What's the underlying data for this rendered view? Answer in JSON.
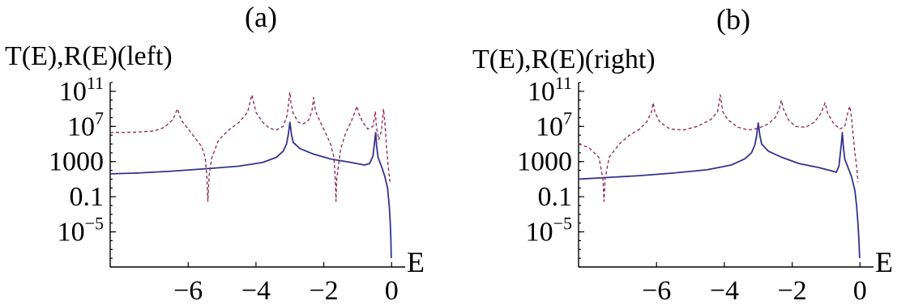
{
  "chart_data": [
    {
      "type": "line",
      "panel_label": "(a)",
      "ylabel": "T(E),R(E)(left)",
      "xlabel": "E",
      "yscale": "log",
      "xlim": [
        -8.3,
        0.4
      ],
      "ylim": [
        1e-09,
        1000000000000.0
      ],
      "x_ticks": [
        {
          "value": -6,
          "label": "−6"
        },
        {
          "value": -4,
          "label": "−4"
        },
        {
          "value": -2,
          "label": "−2"
        },
        {
          "value": 0,
          "label": "0"
        }
      ],
      "y_ticks": [
        {
          "value": 100000000000.0,
          "base": "10",
          "exp": "11"
        },
        {
          "value": 10000000.0,
          "base": "10",
          "exp": "7"
        },
        {
          "value": 1000,
          "base": "1000",
          "exp": ""
        },
        {
          "value": 0.1,
          "base": "0.1",
          "exp": ""
        },
        {
          "value": 1e-05,
          "base": "10",
          "exp": "−5"
        }
      ],
      "series": [
        {
          "style": "solid",
          "color": "#33338f",
          "points": [
            [
              -8.3,
              40
            ],
            [
              -7.5,
              50
            ],
            [
              -6.5,
              80
            ],
            [
              -5.5,
              150
            ],
            [
              -4.5,
              300
            ],
            [
              -3.8,
              800
            ],
            [
              -3.4,
              3000
            ],
            [
              -3.2,
              15000
            ],
            [
              -3.1,
              100000
            ],
            [
              -3.05,
              1000000
            ],
            [
              -3.0,
              30000000
            ],
            [
              -2.95,
              1000000
            ],
            [
              -2.9,
              150000
            ],
            [
              -2.7,
              30000
            ],
            [
              -2.3,
              7000
            ],
            [
              -1.8,
              2000
            ],
            [
              -1.2,
              800
            ],
            [
              -0.8,
              400
            ],
            [
              -0.65,
              600
            ],
            [
              -0.55,
              4000
            ],
            [
              -0.5,
              200000
            ],
            [
              -0.47,
              2000000
            ],
            [
              -0.44,
              50000
            ],
            [
              -0.4,
              3000
            ],
            [
              -0.3,
              300
            ],
            [
              -0.2,
              20
            ],
            [
              -0.12,
              1
            ],
            [
              -0.07,
              0.01
            ],
            [
              -0.04,
              0.0001
            ],
            [
              -0.02,
              1e-06
            ],
            [
              -0.01,
              1e-08
            ]
          ]
        },
        {
          "style": "dashed",
          "color": "#8a2050",
          "points": [
            [
              -8.3,
              2000000
            ],
            [
              -7.6,
              2200000
            ],
            [
              -7.0,
              3000000
            ],
            [
              -6.7,
              8000000
            ],
            [
              -6.45,
              60000000
            ],
            [
              -6.32,
              1000000000
            ],
            [
              -6.2,
              50000000
            ],
            [
              -6.0,
              5000000
            ],
            [
              -5.8,
              500000
            ],
            [
              -5.6,
              50000
            ],
            [
              -5.5,
              3000
            ],
            [
              -5.45,
              30
            ],
            [
              -5.42,
              0.03
            ],
            [
              -5.38,
              30
            ],
            [
              -5.3,
              3000
            ],
            [
              -5.1,
              300000
            ],
            [
              -4.8,
              4000000
            ],
            [
              -4.5,
              30000000
            ],
            [
              -4.25,
              400000000
            ],
            [
              -4.12,
              40000000000
            ],
            [
              -4.0,
              400000000
            ],
            [
              -3.8,
              30000000
            ],
            [
              -3.6,
              6000000
            ],
            [
              -3.4,
              4000000
            ],
            [
              -3.2,
              10000000
            ],
            [
              -3.08,
              200000000
            ],
            [
              -3.03,
              10000000000
            ],
            [
              -3.0,
              80000000000
            ],
            [
              -2.97,
              5000000000
            ],
            [
              -2.9,
              300000000
            ],
            [
              -2.75,
              30000000
            ],
            [
              -2.6,
              20000000
            ],
            [
              -2.45,
              50000000
            ],
            [
              -2.35,
              600000000
            ],
            [
              -2.3,
              20000000000
            ],
            [
              -2.25,
              600000000
            ],
            [
              -2.1,
              30000000
            ],
            [
              -1.95,
              2000000
            ],
            [
              -1.8,
              100000
            ],
            [
              -1.7,
              3000
            ],
            [
              -1.66,
              10
            ],
            [
              -1.64,
              0.03
            ],
            [
              -1.62,
              10
            ],
            [
              -1.5,
              30000
            ],
            [
              -1.35,
              2000000
            ],
            [
              -1.2,
              30000000
            ],
            [
              -1.1,
              300000000
            ],
            [
              -1.02,
              2000000000
            ],
            [
              -0.97,
              300000000
            ],
            [
              -0.85,
              30000000
            ],
            [
              -0.7,
              5000000
            ],
            [
              -0.55,
              10000000
            ],
            [
              -0.48,
              500000000
            ],
            [
              -0.45,
              10000000
            ],
            [
              -0.38,
              300000
            ],
            [
              -0.3,
              3000000
            ],
            [
              -0.24,
              1000000000
            ],
            [
              -0.2,
              30000000
            ],
            [
              -0.15,
              50000
            ],
            [
              -0.1,
              300
            ],
            [
              -0.05,
              5
            ]
          ]
        }
      ]
    },
    {
      "type": "line",
      "panel_label": "(b)",
      "ylabel": "T(E),R(E)(right)",
      "xlabel": "E",
      "yscale": "log",
      "xlim": [
        -8.3,
        0.4
      ],
      "ylim": [
        1e-09,
        1000000000000.0
      ],
      "x_ticks": [
        {
          "value": -6,
          "label": "−6"
        },
        {
          "value": -4,
          "label": "−4"
        },
        {
          "value": -2,
          "label": "−2"
        },
        {
          "value": 0,
          "label": "0"
        }
      ],
      "y_ticks": [
        {
          "value": 100000000000.0,
          "base": "10",
          "exp": "11"
        },
        {
          "value": 10000000.0,
          "base": "10",
          "exp": "7"
        },
        {
          "value": 1000,
          "base": "1000",
          "exp": ""
        },
        {
          "value": 0.1,
          "base": "0.1",
          "exp": ""
        },
        {
          "value": 1e-05,
          "base": "10",
          "exp": "−5"
        }
      ],
      "series": [
        {
          "style": "solid",
          "color": "#33338f",
          "points": [
            [
              -8.3,
              10
            ],
            [
              -7.5,
              15
            ],
            [
              -6.5,
              25
            ],
            [
              -5.5,
              50
            ],
            [
              -4.5,
              120
            ],
            [
              -3.8,
              400
            ],
            [
              -3.4,
              2000
            ],
            [
              -3.2,
              10000
            ],
            [
              -3.1,
              80000
            ],
            [
              -3.05,
              800000
            ],
            [
              -3.0,
              25000000
            ],
            [
              -2.95,
              800000
            ],
            [
              -2.9,
              100000
            ],
            [
              -2.7,
              15000
            ],
            [
              -2.3,
              3000
            ],
            [
              -1.8,
              600
            ],
            [
              -1.2,
              200
            ],
            [
              -0.8,
              80
            ],
            [
              -0.7,
              60
            ],
            [
              -0.62,
              300
            ],
            [
              -0.55,
              100000
            ],
            [
              -0.52,
              2000000
            ],
            [
              -0.49,
              50000
            ],
            [
              -0.45,
              2000
            ],
            [
              -0.35,
              200
            ],
            [
              -0.25,
              20
            ],
            [
              -0.15,
              0.5
            ],
            [
              -0.1,
              0.01
            ],
            [
              -0.06,
              0.0001
            ],
            [
              -0.03,
              1e-06
            ],
            [
              -0.01,
              1e-08
            ]
          ]
        },
        {
          "style": "dashed",
          "color": "#8a2050",
          "points": [
            [
              -8.3,
              100000
            ],
            [
              -8.0,
              40000
            ],
            [
              -7.7,
              3000
            ],
            [
              -7.58,
              10
            ],
            [
              -7.55,
              0.03
            ],
            [
              -7.52,
              10
            ],
            [
              -7.4,
              3000
            ],
            [
              -7.1,
              100000
            ],
            [
              -6.8,
              1000000
            ],
            [
              -6.5,
              5000000
            ],
            [
              -6.3,
              30000000
            ],
            [
              -6.15,
              400000000
            ],
            [
              -6.1,
              5000000000
            ],
            [
              -6.05,
              400000000
            ],
            [
              -5.9,
              30000000
            ],
            [
              -5.6,
              5000000
            ],
            [
              -5.2,
              4000000
            ],
            [
              -4.8,
              10000000
            ],
            [
              -4.4,
              60000000
            ],
            [
              -4.2,
              500000000
            ],
            [
              -4.12,
              40000000000
            ],
            [
              -4.05,
              500000000
            ],
            [
              -3.9,
              60000000
            ],
            [
              -3.6,
              8000000
            ],
            [
              -3.3,
              4000000
            ],
            [
              -3.0,
              6000000
            ],
            [
              -2.7,
              20000000
            ],
            [
              -2.5,
              100000000
            ],
            [
              -2.38,
              1000000000
            ],
            [
              -2.32,
              10000000000
            ],
            [
              -2.26,
              1000000000
            ],
            [
              -2.1,
              50000000
            ],
            [
              -1.9,
              10000000
            ],
            [
              -1.6,
              8000000
            ],
            [
              -1.35,
              30000000
            ],
            [
              -1.15,
              300000000
            ],
            [
              -1.03,
              5000000000
            ],
            [
              -0.95,
              300000000
            ],
            [
              -0.8,
              30000000
            ],
            [
              -0.6,
              5000000
            ],
            [
              -0.45,
              10000000
            ],
            [
              -0.35,
              500000000
            ],
            [
              -0.3,
              2000000000
            ],
            [
              -0.25,
              100000000
            ],
            [
              -0.2,
              1000000
            ],
            [
              -0.15,
              10000
            ],
            [
              -0.1,
              300
            ],
            [
              -0.06,
              5
            ]
          ]
        }
      ]
    }
  ]
}
